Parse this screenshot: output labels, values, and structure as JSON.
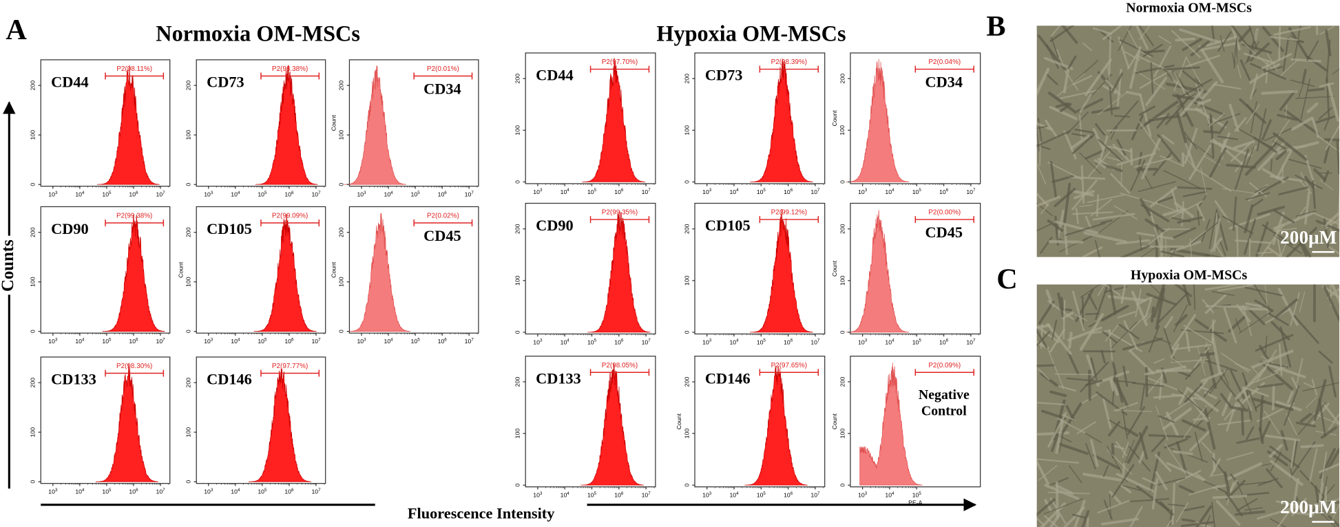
{
  "panel_A": {
    "letter": "A",
    "y_axis_label": "Counts",
    "x_axis_label": "Fluorescence Intensity",
    "groups": [
      {
        "title": "Normoxia OM-MSCs",
        "panels": [
          {
            "marker": [
              "CD44"
            ],
            "gate": "P2(98.11%)",
            "color": "#ff2020"
          },
          {
            "marker": [
              "CD73"
            ],
            "gate": "P2(98.38%)",
            "color": "#ff2020"
          },
          {
            "marker": [
              "CD34"
            ],
            "gate": "P2(0.01%)",
            "color": "#f47c7c",
            "count_label": true
          },
          {
            "marker": [
              "CD90"
            ],
            "gate": "P2(99.38%)",
            "color": "#ff2020"
          },
          {
            "marker": [
              "CD105"
            ],
            "gate": "P2(99.09%)",
            "color": "#ff2020",
            "count_label": true
          },
          {
            "marker": [
              "CD45"
            ],
            "gate": "P2(0.02%)",
            "color": "#f47c7c",
            "count_label": true
          },
          {
            "marker": [
              "CD133"
            ],
            "gate": "P2(98.30%)",
            "color": "#ff2020"
          },
          {
            "marker": [
              "CD146"
            ],
            "gate": "P2(97.77%)",
            "color": "#ff2020"
          }
        ]
      },
      {
        "title": "Hypoxia OM-MSCs",
        "panels": [
          {
            "marker": [
              "CD44"
            ],
            "gate": "P2(97.70%)",
            "color": "#ff2020"
          },
          {
            "marker": [
              "CD73"
            ],
            "gate": "P2(98.39%)",
            "color": "#ff2020"
          },
          {
            "marker": [
              "CD34"
            ],
            "gate": "P2(0.04%)",
            "color": "#f47c7c",
            "count_label": true
          },
          {
            "marker": [
              "CD90"
            ],
            "gate": "P2(99.35%)",
            "color": "#ff2020"
          },
          {
            "marker": [
              "CD105"
            ],
            "gate": "P2(99.12%)",
            "color": "#ff2020"
          },
          {
            "marker": [
              "CD45"
            ],
            "gate": "P2(0.00%)",
            "color": "#f47c7c",
            "count_label": true
          },
          {
            "marker": [
              "CD133"
            ],
            "gate": "P2(98.05%)",
            "color": "#ff2020"
          },
          {
            "marker": [
              "CD146"
            ],
            "gate": "P2(97.65%)",
            "color": "#ff2020",
            "count_label": true
          },
          {
            "marker": [
              "Negative",
              "Control"
            ],
            "gate": "P2(0.09%)",
            "color": "#f47c7c",
            "count_label": true,
            "x_label": true
          }
        ]
      }
    ]
  },
  "axis": {
    "x_ticks": [
      {
        "base": "10",
        "exp": "3"
      },
      {
        "base": "10",
        "exp": "4"
      },
      {
        "base": "10",
        "exp": "5"
      },
      {
        "base": "10",
        "exp": "6"
      },
      {
        "base": "10",
        "exp": "7"
      }
    ],
    "y_ticks": [
      "0",
      "100",
      "200"
    ],
    "count_label": "Count",
    "x_label": "PE-A"
  },
  "panel_B": {
    "letter": "B",
    "title": "Normoxia OM-MSCs",
    "scale_bar": "200μM"
  },
  "panel_C": {
    "letter": "C",
    "title": "Hypoxia OM-MSCs",
    "scale_bar": "200μM"
  }
}
